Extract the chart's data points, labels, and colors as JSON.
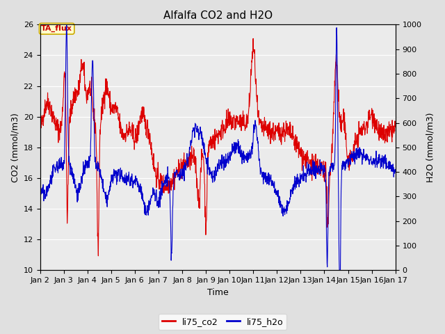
{
  "title": "Alfalfa CO2 and H2O",
  "xlabel": "Time",
  "ylabel_left": "CO2 (mmol/m3)",
  "ylabel_right": "H2O (mmol/m3)",
  "annotation_text": "TA_flux",
  "annotation_facecolor": "#ffffcc",
  "annotation_edgecolor": "#ccaa00",
  "annotation_textcolor": "#cc0000",
  "ylim_left": [
    10,
    26
  ],
  "ylim_right": [
    0,
    1000
  ],
  "yticks_left": [
    10,
    12,
    14,
    16,
    18,
    20,
    22,
    24,
    26
  ],
  "yticks_right": [
    0,
    100,
    200,
    300,
    400,
    500,
    600,
    700,
    800,
    900,
    1000
  ],
  "xtick_labels": [
    "Jan 2",
    "Jan 3",
    "Jan 4",
    "Jan 5",
    "Jan 6",
    "Jan 7",
    "Jan 8",
    "Jan 9",
    "Jan 10",
    "Jan 11",
    "Jan 12",
    "Jan 13",
    "Jan 14",
    "Jan 15",
    "Jan 16",
    "Jan 17"
  ],
  "co2_color": "#dd0000",
  "h2o_color": "#0000cc",
  "line_width": 0.8,
  "background_color": "#e0e0e0",
  "plot_bg_color": "#ebebeb",
  "grid_color": "#ffffff",
  "legend_co2": "li75_co2",
  "legend_h2o": "li75_h2o",
  "title_fontsize": 11,
  "axis_label_fontsize": 9,
  "tick_fontsize": 8,
  "annotation_fontsize": 8
}
